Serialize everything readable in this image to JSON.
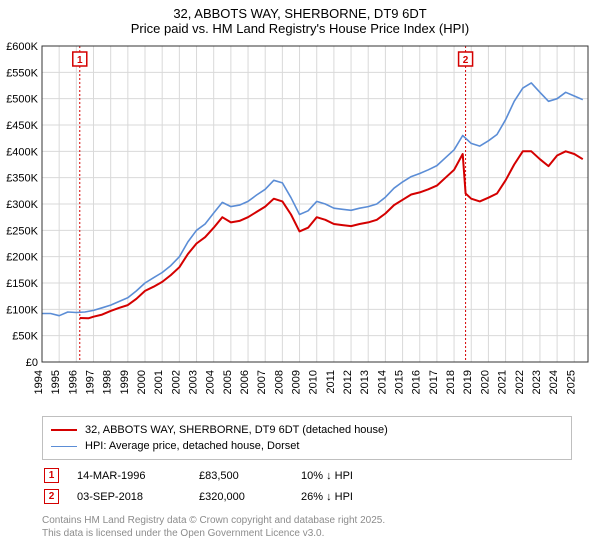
{
  "chart": {
    "type": "line",
    "title_line1": "32, ABBOTS WAY, SHERBORNE, DT9 6DT",
    "title_line2": "Price paid vs. HM Land Registry's House Price Index (HPI)",
    "title_fontsize": 13,
    "background_color": "#ffffff",
    "plot_border_color": "#333333",
    "grid_color": "#d9d9d9",
    "axis_label_fontsize": 11,
    "xlim": [
      1994,
      2025.8
    ],
    "ylim": [
      0,
      600000
    ],
    "ytick_step": 50000,
    "ytick_labels": [
      "£0",
      "£50K",
      "£100K",
      "£150K",
      "£200K",
      "£250K",
      "£300K",
      "£350K",
      "£400K",
      "£450K",
      "£500K",
      "£550K",
      "£600K"
    ],
    "xtick_step": 1,
    "xtick_labels": [
      "1994",
      "1995",
      "1996",
      "1997",
      "1998",
      "1999",
      "2000",
      "2001",
      "2002",
      "2003",
      "2004",
      "2005",
      "2006",
      "2007",
      "2008",
      "2009",
      "2010",
      "2011",
      "2012",
      "2013",
      "2014",
      "2015",
      "2016",
      "2017",
      "2018",
      "2019",
      "2020",
      "2021",
      "2022",
      "2023",
      "2024",
      "2025"
    ],
    "series": [
      {
        "name": "subject_property",
        "label": "32, ABBOTS WAY, SHERBORNE, DT9 6DT (detached house)",
        "color": "#d40000",
        "line_width": 2,
        "data": [
          [
            1996.2,
            83500
          ],
          [
            1996.7,
            83000
          ],
          [
            1997.0,
            86000
          ],
          [
            1997.5,
            90000
          ],
          [
            1998.0,
            97000
          ],
          [
            1998.5,
            103000
          ],
          [
            1999.0,
            108000
          ],
          [
            1999.5,
            120000
          ],
          [
            2000.0,
            135000
          ],
          [
            2000.5,
            143000
          ],
          [
            2001.0,
            152000
          ],
          [
            2001.5,
            165000
          ],
          [
            2002.0,
            180000
          ],
          [
            2002.5,
            205000
          ],
          [
            2003.0,
            225000
          ],
          [
            2003.5,
            237000
          ],
          [
            2004.0,
            255000
          ],
          [
            2004.5,
            275000
          ],
          [
            2005.0,
            265000
          ],
          [
            2005.5,
            268000
          ],
          [
            2006.0,
            275000
          ],
          [
            2006.5,
            285000
          ],
          [
            2007.0,
            295000
          ],
          [
            2007.5,
            310000
          ],
          [
            2008.0,
            305000
          ],
          [
            2008.5,
            280000
          ],
          [
            2009.0,
            248000
          ],
          [
            2009.5,
            255000
          ],
          [
            2010.0,
            275000
          ],
          [
            2010.5,
            270000
          ],
          [
            2011.0,
            262000
          ],
          [
            2011.5,
            260000
          ],
          [
            2012.0,
            258000
          ],
          [
            2012.5,
            262000
          ],
          [
            2013.0,
            265000
          ],
          [
            2013.5,
            270000
          ],
          [
            2014.0,
            282000
          ],
          [
            2014.5,
            298000
          ],
          [
            2015.0,
            308000
          ],
          [
            2015.5,
            318000
          ],
          [
            2016.0,
            322000
          ],
          [
            2016.5,
            328000
          ],
          [
            2017.0,
            335000
          ],
          [
            2017.5,
            350000
          ],
          [
            2018.0,
            365000
          ],
          [
            2018.5,
            395000
          ],
          [
            2018.67,
            320000
          ],
          [
            2019.0,
            310000
          ],
          [
            2019.5,
            305000
          ],
          [
            2020.0,
            312000
          ],
          [
            2020.5,
            320000
          ],
          [
            2021.0,
            345000
          ],
          [
            2021.5,
            375000
          ],
          [
            2022.0,
            400000
          ],
          [
            2022.5,
            400000
          ],
          [
            2023.0,
            385000
          ],
          [
            2023.5,
            372000
          ],
          [
            2024.0,
            392000
          ],
          [
            2024.5,
            400000
          ],
          [
            2025.0,
            395000
          ],
          [
            2025.5,
            385000
          ]
        ]
      },
      {
        "name": "hpi_dorset_detached",
        "label": "HPI: Average price, detached house, Dorset",
        "color": "#5b8dd6",
        "line_width": 1.6,
        "data": [
          [
            1994.0,
            92000
          ],
          [
            1994.5,
            92000
          ],
          [
            1995.0,
            88000
          ],
          [
            1995.5,
            95000
          ],
          [
            1996.0,
            94000
          ],
          [
            1996.5,
            95000
          ],
          [
            1997.0,
            98000
          ],
          [
            1997.5,
            103000
          ],
          [
            1998.0,
            108000
          ],
          [
            1998.5,
            115000
          ],
          [
            1999.0,
            122000
          ],
          [
            1999.5,
            135000
          ],
          [
            2000.0,
            150000
          ],
          [
            2000.5,
            160000
          ],
          [
            2001.0,
            170000
          ],
          [
            2001.5,
            183000
          ],
          [
            2002.0,
            200000
          ],
          [
            2002.5,
            228000
          ],
          [
            2003.0,
            250000
          ],
          [
            2003.5,
            262000
          ],
          [
            2004.0,
            283000
          ],
          [
            2004.5,
            303000
          ],
          [
            2005.0,
            295000
          ],
          [
            2005.5,
            298000
          ],
          [
            2006.0,
            305000
          ],
          [
            2006.5,
            317000
          ],
          [
            2007.0,
            328000
          ],
          [
            2007.5,
            345000
          ],
          [
            2008.0,
            340000
          ],
          [
            2008.5,
            312000
          ],
          [
            2009.0,
            280000
          ],
          [
            2009.5,
            287000
          ],
          [
            2010.0,
            305000
          ],
          [
            2010.5,
            300000
          ],
          [
            2011.0,
            292000
          ],
          [
            2011.5,
            290000
          ],
          [
            2012.0,
            288000
          ],
          [
            2012.5,
            292000
          ],
          [
            2013.0,
            295000
          ],
          [
            2013.5,
            300000
          ],
          [
            2014.0,
            313000
          ],
          [
            2014.5,
            330000
          ],
          [
            2015.0,
            342000
          ],
          [
            2015.5,
            352000
          ],
          [
            2016.0,
            358000
          ],
          [
            2016.5,
            365000
          ],
          [
            2017.0,
            373000
          ],
          [
            2017.5,
            388000
          ],
          [
            2018.0,
            403000
          ],
          [
            2018.5,
            430000
          ],
          [
            2019.0,
            415000
          ],
          [
            2019.5,
            410000
          ],
          [
            2020.0,
            420000
          ],
          [
            2020.5,
            432000
          ],
          [
            2021.0,
            460000
          ],
          [
            2021.5,
            495000
          ],
          [
            2022.0,
            520000
          ],
          [
            2022.5,
            530000
          ],
          [
            2023.0,
            512000
          ],
          [
            2023.5,
            495000
          ],
          [
            2024.0,
            500000
          ],
          [
            2024.5,
            512000
          ],
          [
            2025.0,
            505000
          ],
          [
            2025.5,
            498000
          ]
        ]
      }
    ],
    "markers": [
      {
        "num": "1",
        "x": 1996.2
      },
      {
        "num": "2",
        "x": 2018.67
      }
    ]
  },
  "legend": {
    "row1": "32, ABBOTS WAY, SHERBORNE, DT9 6DT (detached house)",
    "row2": "HPI: Average price, detached house, Dorset"
  },
  "events": [
    {
      "num": "1",
      "date": "14-MAR-1996",
      "price": "£83,500",
      "diff": "10% ↓ HPI"
    },
    {
      "num": "2",
      "date": "03-SEP-2018",
      "price": "£320,000",
      "diff": "26% ↓ HPI"
    }
  ],
  "footer": {
    "line1": "Contains HM Land Registry data © Crown copyright and database right 2025.",
    "line2": "This data is licensed under the Open Government Licence v3.0."
  }
}
